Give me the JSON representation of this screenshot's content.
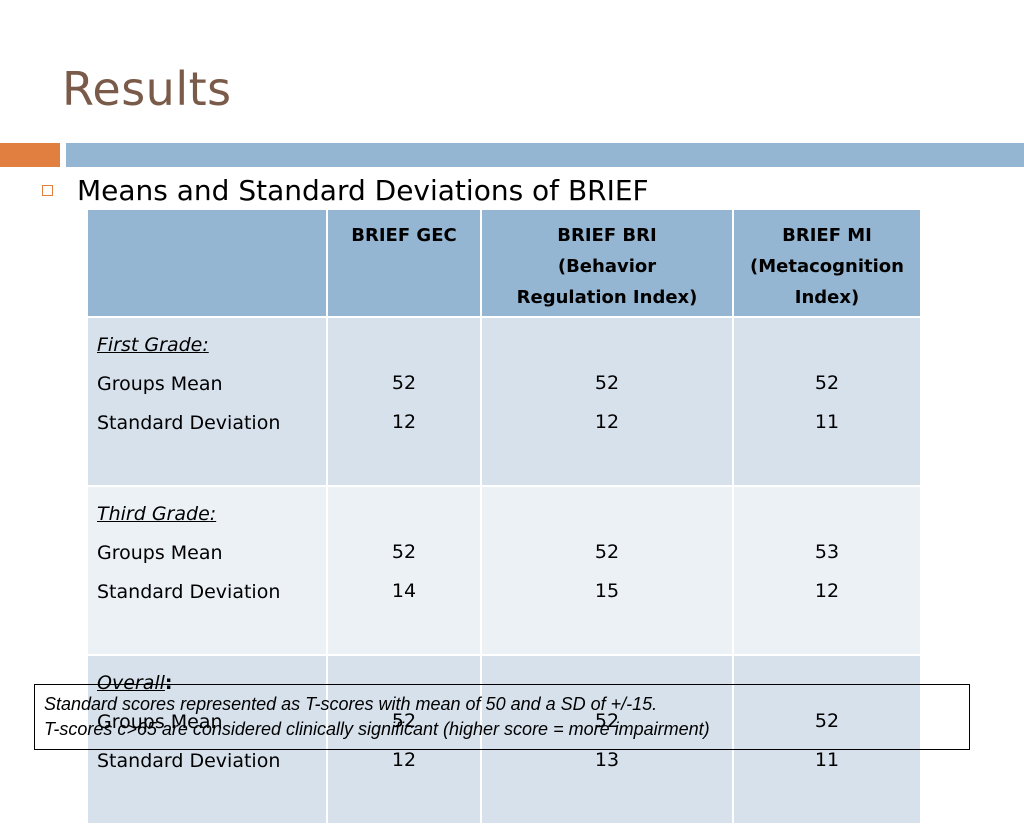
{
  "slide": {
    "title": "Results",
    "bullet": "Means and Standard Deviations of BRIEF",
    "accent_orange": "#e07f3f",
    "accent_blue": "#94b6d2"
  },
  "table": {
    "headers": [
      "",
      "BRIEF GEC",
      "BRIEF BRI (Behavior Regulation Index)",
      "BRIEF MI (Metacognition Index)"
    ],
    "header_lines": {
      "gec": [
        "BRIEF GEC"
      ],
      "bri": [
        "BRIEF BRI",
        "(Behavior",
        "Regulation Index)"
      ],
      "mi": [
        "BRIEF MI",
        "(Metacognition",
        "Index)"
      ]
    },
    "row_labels": {
      "mean": "Groups Mean",
      "sd": "Standard Deviation"
    },
    "rows": [
      {
        "group": "First Grade",
        "suffix": ":",
        "mean": [
          "52",
          "52",
          "52"
        ],
        "sd": [
          "12",
          "12",
          "11"
        ]
      },
      {
        "group": "Third Grade",
        "suffix": ":",
        "mean": [
          "52",
          "52",
          "53"
        ],
        "sd": [
          "14",
          "15",
          "12"
        ]
      },
      {
        "group": "Overall",
        "suffix": ":",
        "mean": [
          "52",
          "52",
          "52"
        ],
        "sd": [
          "12",
          "13",
          "11"
        ]
      }
    ]
  },
  "note": {
    "line1": "Standard scores represented as T-scores with mean of 50 and a SD of +/-15.",
    "line2": "T-scores c>65 are considered clinically significant  (higher score = more impairment)"
  }
}
